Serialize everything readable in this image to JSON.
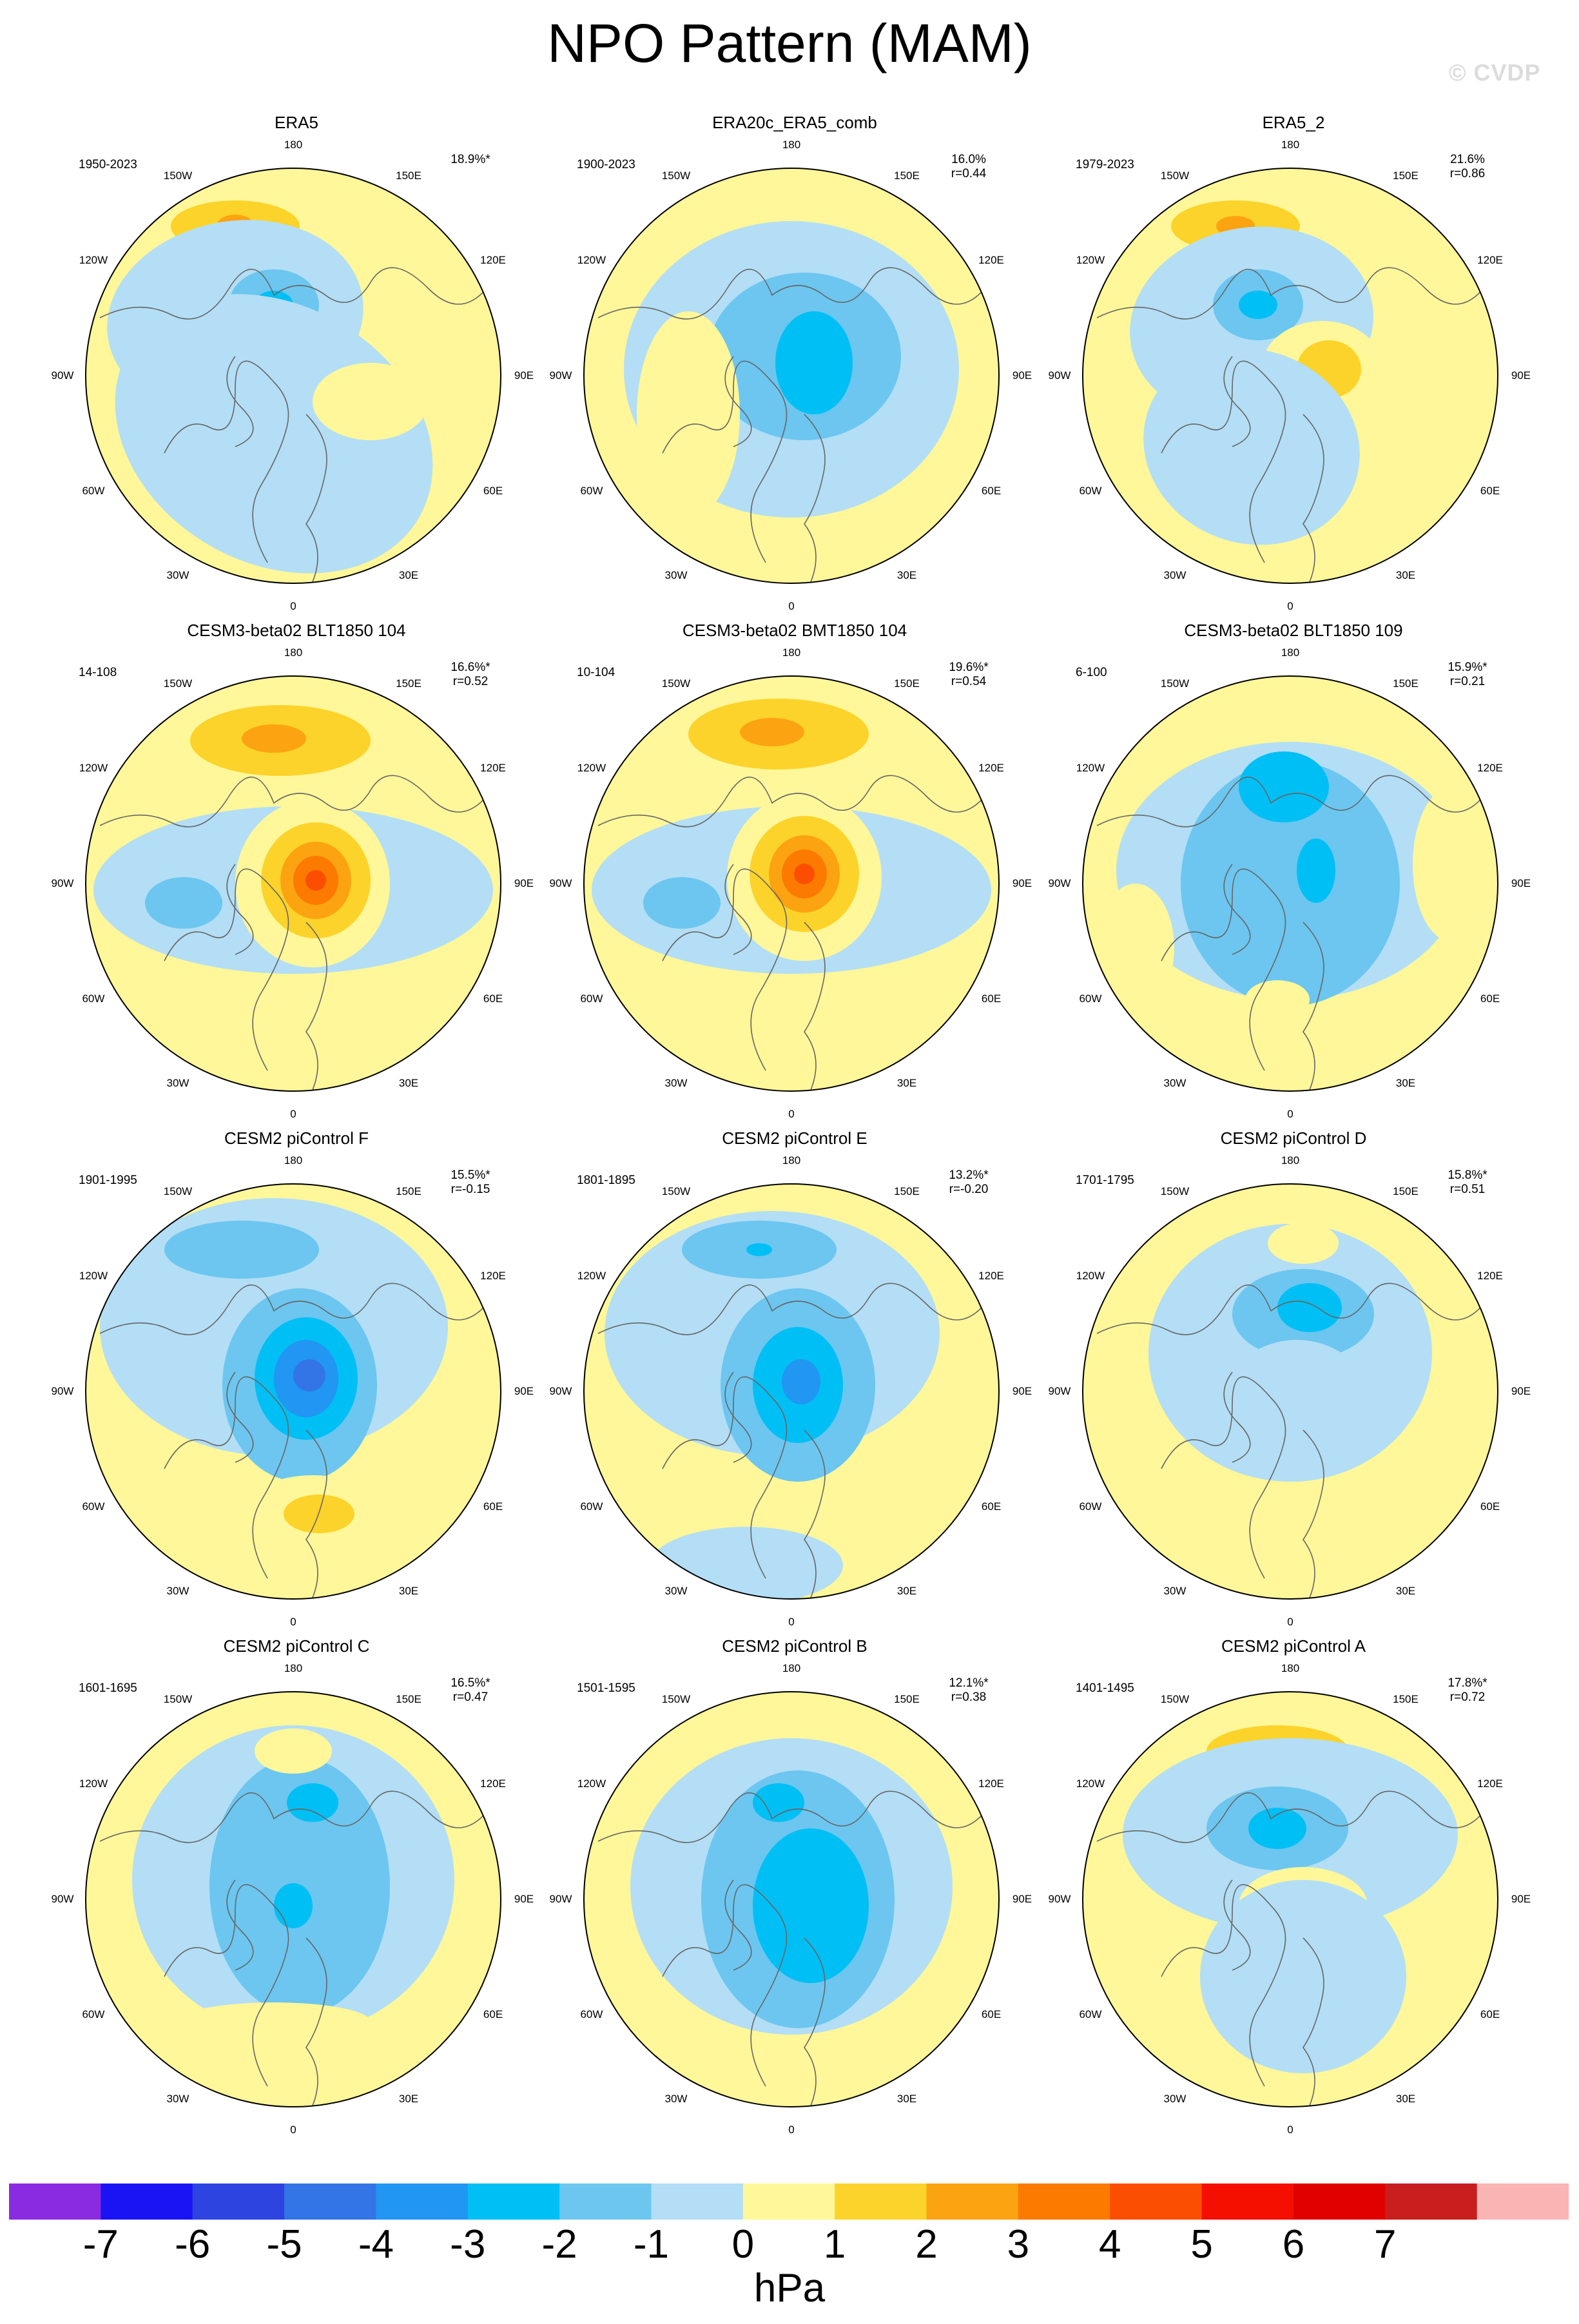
{
  "title": "NPO Pattern (MAM)",
  "watermark": "© CVDP",
  "lon_labels": [
    "180",
    "150E",
    "120E",
    "90E",
    "60E",
    "30E",
    "0",
    "30W",
    "60W",
    "90W",
    "120W",
    "150W"
  ],
  "panels": [
    {
      "title": "ERA5",
      "period": "1950-2023",
      "stat1": "18.9%*",
      "stat2": ""
    },
    {
      "title": "ERA20c_ERA5_comb",
      "period": "1900-2023",
      "stat1": "16.0%",
      "stat2": "r=0.44"
    },
    {
      "title": "ERA5_2",
      "period": "1979-2023",
      "stat1": "21.6%",
      "stat2": "r=0.86"
    },
    {
      "title": "CESM3-beta02 BLT1850 104",
      "period": "14-108",
      "stat1": "16.6%*",
      "stat2": "r=0.52"
    },
    {
      "title": "CESM3-beta02 BMT1850 104",
      "period": "10-104",
      "stat1": "19.6%*",
      "stat2": "r=0.54"
    },
    {
      "title": "CESM3-beta02 BLT1850 109",
      "period": "6-100",
      "stat1": "15.9%*",
      "stat2": "r=0.21"
    },
    {
      "title": "CESM2 piControl F",
      "period": "1901-1995",
      "stat1": "15.5%*",
      "stat2": "r=-0.15"
    },
    {
      "title": "CESM2 piControl E",
      "period": "1801-1895",
      "stat1": "13.2%*",
      "stat2": "r=-0.20"
    },
    {
      "title": "CESM2 piControl D",
      "period": "1701-1795",
      "stat1": "15.8%*",
      "stat2": "r=0.51"
    },
    {
      "title": "CESM2 piControl C",
      "period": "1601-1695",
      "stat1": "16.5%*",
      "stat2": "r=0.47"
    },
    {
      "title": "CESM2 piControl B",
      "period": "1501-1595",
      "stat1": "12.1%*",
      "stat2": "r=0.38"
    },
    {
      "title": "CESM2 piControl A",
      "period": "1401-1495",
      "stat1": "17.8%*",
      "stat2": "r=0.72"
    }
  ],
  "colorbar": {
    "colors": [
      "#8a2be2",
      "#1a14f5",
      "#2d44e0",
      "#3374e6",
      "#2196f3",
      "#00bff5",
      "#6cc6f0",
      "#b3def5",
      "#fff799",
      "#fcd32a",
      "#fca311",
      "#fc7a00",
      "#fc4e00",
      "#f50f00",
      "#e00000",
      "#c81e1e",
      "#fab4b4"
    ],
    "ticks": [
      "-7",
      "-6",
      "-5",
      "-4",
      "-3",
      "-2",
      "-1",
      "0",
      "1",
      "2",
      "3",
      "4",
      "5",
      "6",
      "7"
    ],
    "units": "hPa"
  }
}
